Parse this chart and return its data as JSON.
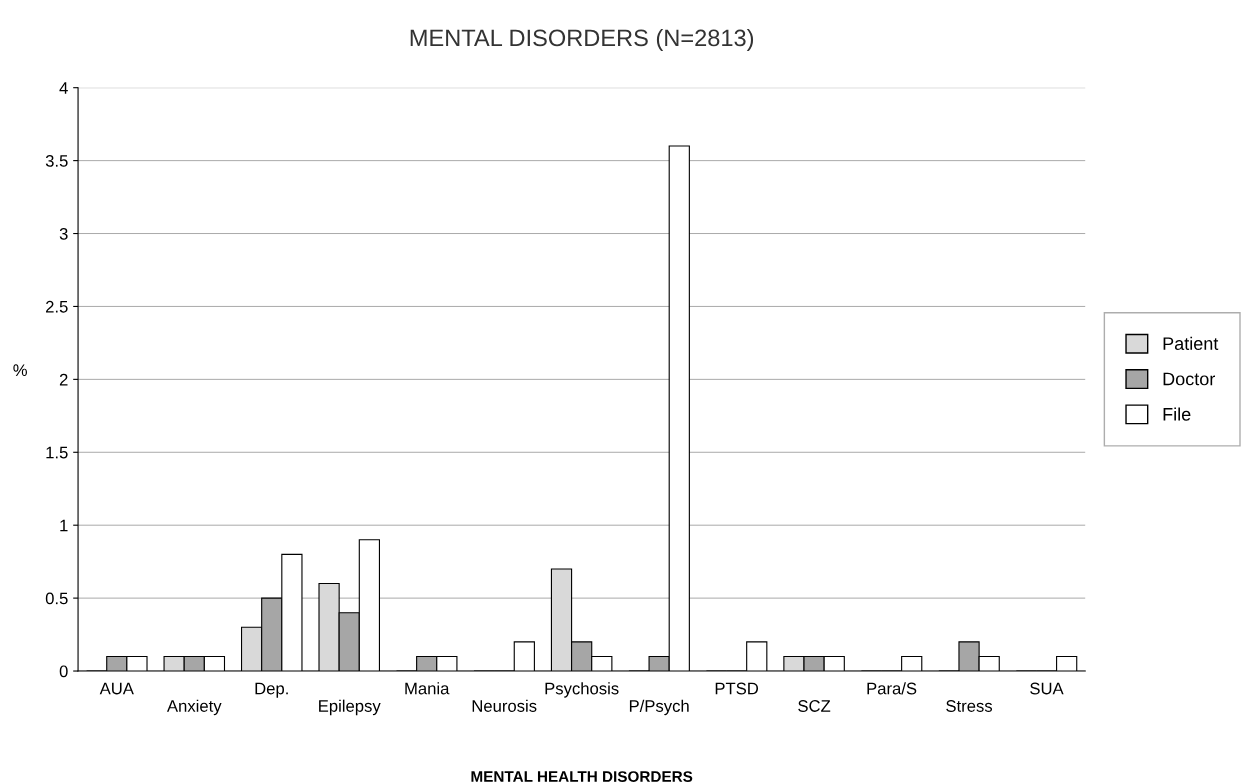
{
  "chart_data": {
    "type": "bar",
    "title": "MENTAL DISORDERS (N=2813)",
    "xlabel": "MENTAL HEALTH DISORDERS",
    "ylabel": "%",
    "categories": [
      "AUA",
      "Anxiety",
      "Dep.",
      "Epilepsy",
      "Mania",
      "Neurosis",
      "Psychosis",
      "P/Psych",
      "PTSD",
      "SCZ",
      "Para/S",
      "Stress",
      "SUA"
    ],
    "series": [
      {
        "name": "Patient",
        "color": "#d9d9d9",
        "values": [
          0,
          0.1,
          0.3,
          0.6,
          0,
          0,
          0.7,
          0,
          0,
          0.1,
          0,
          0,
          0
        ]
      },
      {
        "name": "Doctor",
        "color": "#a6a6a6",
        "values": [
          0.1,
          0.1,
          0.5,
          0.4,
          0.1,
          0,
          0.2,
          0.1,
          0,
          0.1,
          0,
          0.2,
          0
        ]
      },
      {
        "name": "File",
        "color": "#ffffff",
        "values": [
          0.1,
          0.1,
          0.8,
          0.9,
          0.1,
          0.2,
          0.1,
          3.6,
          0.2,
          0.1,
          0.1,
          0.1,
          0.1
        ]
      }
    ],
    "ylim": [
      0,
      4
    ],
    "yticks": [
      0,
      0.5,
      1,
      1.5,
      2,
      2.5,
      3,
      3.5,
      4
    ],
    "grid": "y",
    "legend": "right"
  }
}
